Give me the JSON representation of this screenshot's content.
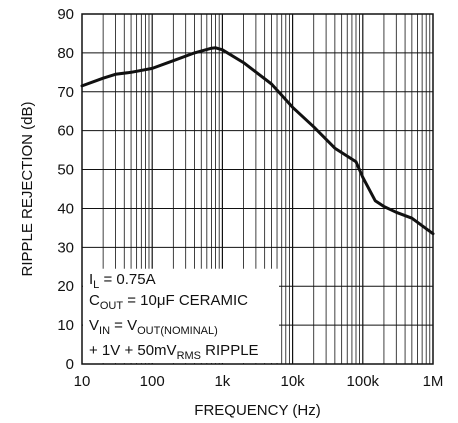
{
  "chart_data": {
    "type": "line",
    "title": "",
    "xlabel": "FREQUENCY (Hz)",
    "ylabel": "RIPPLE REJECTION (dB)",
    "xscale": "log",
    "xlim": [
      10,
      1000000
    ],
    "ylim": [
      0,
      90
    ],
    "x_tick_labels": [
      "10",
      "100",
      "1k",
      "10k",
      "100k",
      "1M"
    ],
    "y_tick_labels": [
      "0",
      "10",
      "20",
      "30",
      "40",
      "50",
      "60",
      "70",
      "80",
      "90"
    ],
    "grid": true,
    "series": [
      {
        "x": [
          10,
          20,
          30,
          50,
          100,
          200,
          400,
          700,
          800,
          1000,
          2000,
          5000,
          10000,
          20000,
          40000,
          80000,
          100000,
          150000,
          200000,
          300000,
          500000,
          1000000
        ],
        "y": [
          71.5,
          73.5,
          74.5,
          75,
          76,
          78,
          80,
          81.2,
          81.3,
          80.8,
          77.5,
          72,
          66,
          61,
          55.5,
          52,
          48,
          42,
          40.5,
          39,
          37.5,
          33.5
        ]
      }
    ],
    "annotation_lines": [
      {
        "main": "I",
        "sub": "L",
        "rest": " = 0.75A"
      },
      {
        "main": "C",
        "sub": "OUT",
        "rest": " = 10μF CERAMIC"
      },
      {
        "main": "V",
        "sub": "IN",
        "mid": " = V",
        "sub2": "OUT(NOMINAL)"
      },
      {
        "main": "+ 1V + 50mV",
        "sub": "RMS",
        "rest": " RIPPLE"
      }
    ]
  }
}
